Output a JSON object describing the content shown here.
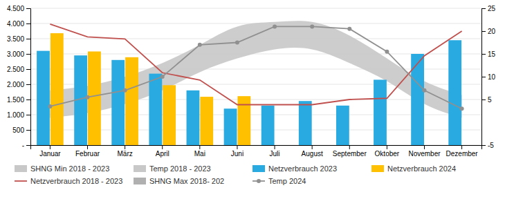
{
  "chart_data": {
    "type": "bar",
    "categories": [
      "Januar",
      "Februar",
      "März",
      "April",
      "Mai",
      "Juni",
      "Juli",
      "August",
      "September",
      "Oktober",
      "November",
      "Dezember"
    ],
    "series": [
      {
        "name": "SHNG Min 2018 - 2023",
        "type": "area",
        "axis": "y2",
        "color": "#C8C8C8",
        "values": [
          1,
          2,
          4,
          7,
          11,
          14,
          16,
          16,
          13,
          9,
          4,
          1
        ]
      },
      {
        "name": "Temp 2018 - 2023",
        "type": "area",
        "axis": "y2",
        "color": "#C8C8C8"
      },
      {
        "name": "Netzverbrauch 2023",
        "type": "bar",
        "color": "#29ABE2",
        "values": [
          3100,
          2950,
          2800,
          2350,
          1800,
          1200,
          1300,
          1450,
          1300,
          2150,
          3000,
          3450
        ]
      },
      {
        "name": "Netzverbrauch 2024",
        "type": "bar",
        "color": "#FFC000",
        "values": [
          3680,
          3080,
          2890,
          1970,
          1590,
          1610,
          null,
          null,
          null,
          null,
          null,
          null
        ]
      },
      {
        "name": "Netzverbrauch 2018 - 2023",
        "type": "line",
        "color": "#C0504D",
        "values": [
          3980,
          3560,
          3490,
          2380,
          2140,
          1330,
          1330,
          1330,
          1500,
          1540,
          2940,
          3750
        ]
      },
      {
        "name": "SHNG Max 2018- 202",
        "type": "area",
        "axis": "y2",
        "color": "#B0B0B0",
        "values": [
          7,
          8,
          10,
          13,
          17,
          21,
          22,
          22,
          19,
          14,
          9,
          6
        ]
      },
      {
        "name": "Temp 2024",
        "type": "line",
        "axis": "y2",
        "color": "#909090",
        "marker": "circle",
        "values": [
          3.5,
          5.5,
          7,
          10,
          17,
          17.5,
          21,
          21,
          20.5,
          15.5,
          7,
          3
        ]
      }
    ],
    "ylim": [
      0,
      4500
    ],
    "yticks": [
      {
        "value": 0,
        "label": "-"
      },
      500,
      {
        "value": 1000,
        "label": "1.000"
      },
      {
        "value": 1500,
        "label": "1.500"
      },
      {
        "value": 2000,
        "label": "2.000"
      },
      {
        "value": 2500,
        "label": "2.500"
      },
      {
        "value": 3000,
        "label": "3.000"
      },
      {
        "value": 3500,
        "label": "3.500"
      },
      {
        "value": 4000,
        "label": "4.000"
      },
      {
        "value": 4500,
        "label": "4.500"
      }
    ],
    "y2lim": [
      -5,
      25
    ],
    "y2ticks": [
      -5,
      5,
      10,
      15,
      20,
      25
    ],
    "grid": true,
    "legend": "bottom"
  }
}
